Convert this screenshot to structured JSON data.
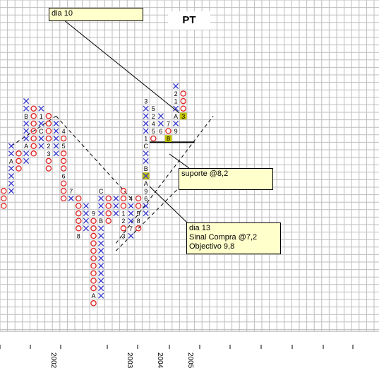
{
  "chart_data": {
    "type": "point-and-figure",
    "title": "PT",
    "grid": true,
    "x_ticks": [
      "2002",
      "2003",
      "2004",
      "2005"
    ],
    "annotations": [
      {
        "lines": [
          "dia 10"
        ]
      },
      {
        "lines": [
          "suporte @8,2"
        ]
      },
      {
        "lines": [
          "dia 13",
          "Sinal Compra @7,2",
          "Objectivo 9,8"
        ]
      }
    ],
    "columns": [
      {
        "type": "O",
        "start_row": 25,
        "end_row": 27
      },
      {
        "type": "X",
        "start_row": 19,
        "end_row": 25,
        "labels": [
          {
            "row": 21,
            "text": "A"
          }
        ]
      },
      {
        "type": "O",
        "start_row": 20,
        "end_row": 22
      },
      {
        "type": "X",
        "start_row": 13,
        "end_row": 21,
        "labels": [
          {
            "row": 15,
            "text": "B"
          },
          {
            "row": 19,
            "text": "A"
          }
        ]
      },
      {
        "type": "O",
        "start_row": 14,
        "end_row": 20
      },
      {
        "type": "X",
        "start_row": 14,
        "end_row": 19,
        "labels": [
          {
            "row": 15,
            "text": "1"
          },
          {
            "row": 17,
            "text": "C"
          }
        ]
      },
      {
        "type": "O",
        "start_row": 15,
        "end_row": 22,
        "labels": [
          {
            "row": 19,
            "text": "2"
          },
          {
            "row": 20,
            "text": "3"
          }
        ]
      },
      {
        "type": "X",
        "start_row": 16,
        "end_row": 20
      },
      {
        "type": "O",
        "start_row": 17,
        "end_row": 26,
        "labels": [
          {
            "row": 17,
            "text": "4"
          },
          {
            "row": 19,
            "text": "5"
          },
          {
            "row": 23,
            "text": "6"
          }
        ]
      },
      {
        "type": "X",
        "start_row": 25,
        "end_row": 26,
        "labels": [
          {
            "row": 25,
            "text": "7"
          }
        ]
      },
      {
        "type": "O",
        "start_row": 26,
        "end_row": 31,
        "labels": [
          {
            "row": 31,
            "text": "8"
          }
        ]
      },
      {
        "type": "X",
        "start_row": 27,
        "end_row": 30
      },
      {
        "type": "O",
        "start_row": 28,
        "end_row": 40,
        "labels": [
          {
            "row": 28,
            "text": "9"
          },
          {
            "row": 39,
            "text": "A"
          }
        ]
      },
      {
        "type": "X",
        "start_row": 25,
        "end_row": 39,
        "labels": [
          {
            "row": 25,
            "text": "C"
          },
          {
            "row": 29,
            "text": "B"
          }
        ]
      },
      {
        "type": "O",
        "start_row": 26,
        "end_row": 29
      },
      {
        "type": "X",
        "start_row": 26,
        "end_row": 28
      },
      {
        "type": "O",
        "start_row": 25,
        "end_row": 31,
        "labels": [
          {
            "row": 28,
            "text": "1"
          },
          {
            "row": 29,
            "text": "2"
          },
          {
            "row": 31,
            "text": "3"
          }
        ]
      },
      {
        "type": "X",
        "start_row": 26,
        "end_row": 31,
        "labels": [
          {
            "row": 26,
            "text": "4"
          },
          {
            "row": 30,
            "text": "7"
          }
        ]
      },
      {
        "type": "O",
        "start_row": 26,
        "end_row": 30,
        "labels": [
          {
            "row": 28,
            "text": "5"
          },
          {
            "row": 29,
            "text": "8"
          }
        ]
      },
      {
        "type": "X",
        "start_row": 13,
        "end_row": 28,
        "labels": [
          {
            "row": 13,
            "text": "3"
          },
          {
            "row": 18,
            "text": "1"
          },
          {
            "row": 19,
            "text": "C"
          },
          {
            "row": 22,
            "text": "B"
          },
          {
            "row": 23,
            "text": "X",
            "highlight": true
          },
          {
            "row": 24,
            "text": "A"
          },
          {
            "row": 25,
            "text": "9"
          },
          {
            "row": 26,
            "text": "6"
          }
        ]
      },
      {
        "type": "O",
        "start_row": 14,
        "end_row": 18,
        "labels": [
          {
            "row": 14,
            "text": "5"
          },
          {
            "row": 15,
            "text": "2"
          },
          {
            "row": 16,
            "text": "4"
          },
          {
            "row": 17,
            "text": "5"
          }
        ]
      },
      {
        "type": "X",
        "start_row": 15,
        "end_row": 17,
        "labels": [
          {
            "row": 17,
            "text": "6"
          }
        ]
      },
      {
        "type": "O",
        "start_row": 16,
        "end_row": 18,
        "labels": [
          {
            "row": 16,
            "text": "7"
          },
          {
            "row": 18,
            "text": "8",
            "highlight": true
          }
        ]
      },
      {
        "type": "X",
        "start_row": 11,
        "end_row": 17,
        "labels": [
          {
            "row": 12,
            "text": "2"
          },
          {
            "row": 13,
            "text": "1"
          },
          {
            "row": 15,
            "text": "A"
          },
          {
            "row": 17,
            "text": "9"
          }
        ]
      },
      {
        "type": "O",
        "start_row": 12,
        "end_row": 15,
        "labels": [
          {
            "row": 15,
            "text": "3",
            "highlight": true
          }
        ]
      }
    ],
    "trendlines": [
      {
        "style": "dashed",
        "from": {
          "col": 1,
          "row": 19
        },
        "to": {
          "col": 7,
          "row": 15
        }
      },
      {
        "style": "dashed",
        "from": {
          "col": 7,
          "row": 15
        },
        "to": {
          "col": 17,
          "row": 26
        }
      },
      {
        "style": "dashed",
        "from": {
          "col": 15,
          "row": 32
        },
        "to": {
          "col": 28,
          "row": 15
        }
      },
      {
        "style": "dashed",
        "from": {
          "col": 15,
          "row": 33
        },
        "to": {
          "col": 26,
          "row": 22
        }
      },
      {
        "style": "solid",
        "level_row": 18.5,
        "from_col": 20,
        "to_col": 25
      }
    ]
  }
}
